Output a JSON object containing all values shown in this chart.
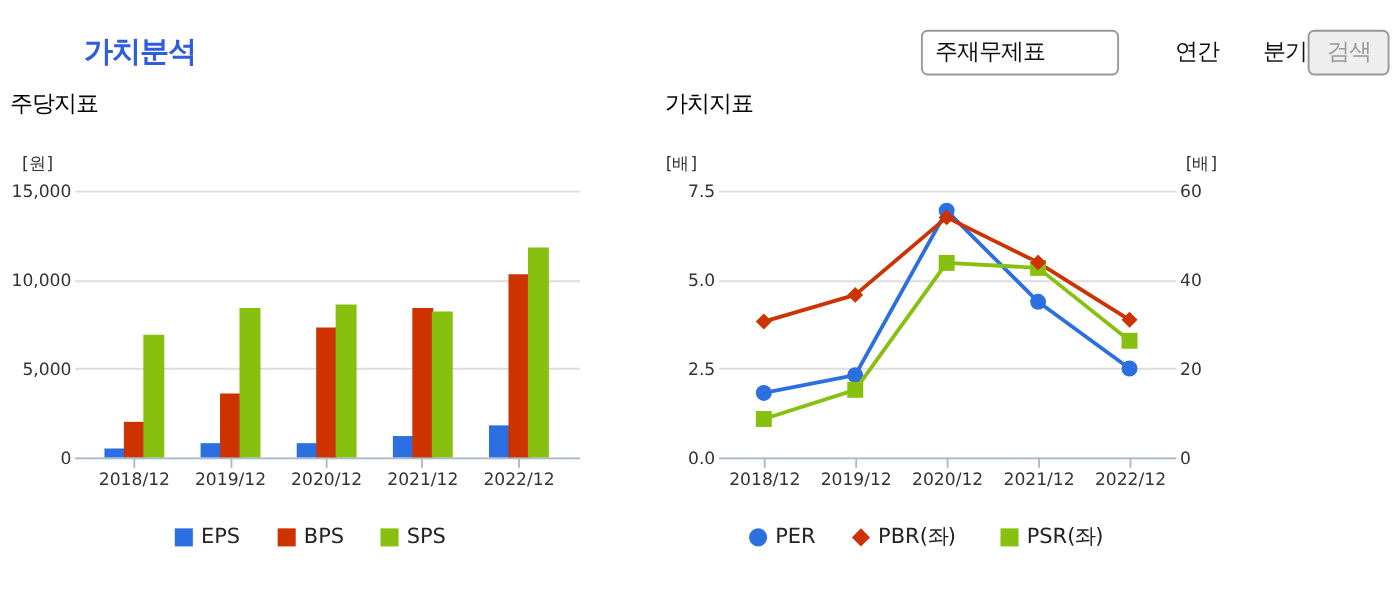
{
  "chart_data": [
    {
      "type": "other",
      "title": "가치분석",
      "annotations": [
        "주재무제표",
        "연간",
        "분기",
        "검색"
      ]
    },
    {
      "type": "bar",
      "title": "주당지표",
      "ylabel": "[원]",
      "categories": [
        "2018/12",
        "2019/12",
        "2020/12",
        "2021/12",
        "2022/12"
      ],
      "series": [
        {
          "name": "EPS",
          "color": "#2b6fe0",
          "values": [
            500,
            800,
            800,
            1200,
            1800
          ]
        },
        {
          "name": "BPS",
          "color": "#cc3300",
          "values": [
            2000,
            3600,
            7300,
            8400,
            10300
          ]
        },
        {
          "name": "SPS",
          "color": "#88c010",
          "values": [
            6900,
            8400,
            8600,
            8200,
            11800
          ]
        }
      ],
      "ylim": [
        0,
        15000
      ],
      "yticks": [
        0,
        {
          "value": 5000,
          "label": "5,000"
        },
        {
          "value": 10000,
          "label": "10,000"
        },
        {
          "value": 15000,
          "label": "15,000"
        }
      ],
      "grid": "y",
      "legend": "bottom"
    },
    {
      "type": "line",
      "title": "가치지표",
      "ylabel": "[배]",
      "y2label": "[배]",
      "categories": [
        "2018/12",
        "2019/12",
        "2020/12",
        "2021/12",
        "2022/12"
      ],
      "series": [
        {
          "name": "PER",
          "color": "#2b6fe0",
          "marker": "circle",
          "axis": "y2",
          "values": [
            14.5,
            18.5,
            55.5,
            35,
            20
          ]
        },
        {
          "name": "PBR(좌)",
          "color": "#cc3300",
          "marker": "diamond",
          "values": [
            3.82,
            4.57,
            6.75,
            5.48,
            3.87
          ]
        },
        {
          "name": "PSR(좌)",
          "color": "#88c010",
          "marker": "square",
          "values": [
            1.08,
            1.9,
            5.47,
            5.33,
            3.28
          ]
        }
      ],
      "ylim": [
        0,
        7.5
      ],
      "yticks": [
        {
          "value": 0,
          "label": "0.0"
        },
        2.5,
        {
          "value": 5,
          "label": "5.0"
        },
        7.5
      ],
      "y2lim": [
        0,
        60
      ],
      "y2ticks": [
        0,
        20,
        40,
        60
      ],
      "grid": "y",
      "legend": "bottom",
      "line_style": "solid"
    }
  ]
}
